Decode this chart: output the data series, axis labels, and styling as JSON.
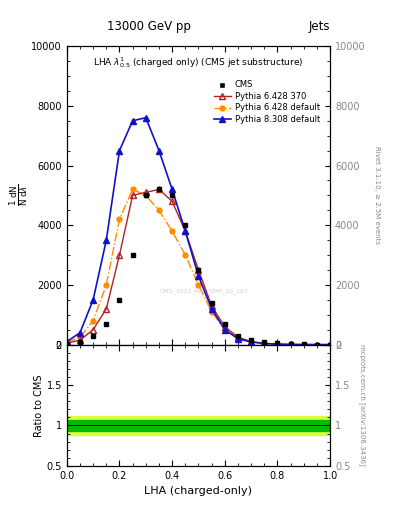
{
  "title_top": "13000 GeV pp",
  "title_right": "Jets",
  "plot_title": "LHA $\\lambda^{1}_{0.5}$ (charged only) (CMS jet substructure)",
  "xlabel": "LHA (charged-only)",
  "ylabel_main": "1/mathrm{N} mathrm{d}mathrm{N} / mathrm{d}lambda",
  "ylabel_ratio": "Ratio to CMS",
  "right_label_main": "Rivet 3.1.10, ≥ 2.5M events",
  "right_label_ratio": "mcplots.cern.ch [arXiv:1306.3436]",
  "watermark": "CMS_2021_PAS_SMP_20_187",
  "lha_x": [
    0.0,
    0.05,
    0.1,
    0.15,
    0.2,
    0.25,
    0.3,
    0.35,
    0.4,
    0.45,
    0.5,
    0.55,
    0.6,
    0.65,
    0.7,
    0.75,
    0.8,
    0.85,
    0.9,
    0.95,
    1.0
  ],
  "cms_y": [
    30,
    100,
    300,
    700,
    1500,
    3000,
    5000,
    5200,
    5000,
    4000,
    2500,
    1400,
    700,
    300,
    150,
    80,
    40,
    15,
    5,
    2,
    0
  ],
  "p6_370_y": [
    50,
    150,
    500,
    1200,
    3000,
    5000,
    5100,
    5200,
    4800,
    3800,
    2500,
    1300,
    600,
    250,
    100,
    40,
    15,
    5,
    2,
    1,
    0
  ],
  "p6_def_y": [
    80,
    250,
    800,
    2000,
    4200,
    5200,
    5000,
    4500,
    3800,
    3000,
    2000,
    1100,
    500,
    200,
    90,
    40,
    15,
    5,
    2,
    1,
    0
  ],
  "p8_def_y": [
    100,
    400,
    1500,
    3500,
    6500,
    7500,
    7600,
    6500,
    5200,
    3800,
    2300,
    1200,
    500,
    200,
    90,
    40,
    15,
    5,
    2,
    1,
    0
  ],
  "cms_color": "#000000",
  "p6_370_color": "#b22222",
  "p6_def_color": "#ff8c00",
  "p8_def_color": "#1111cc",
  "ylim_main": [
    0,
    10000
  ],
  "ylim_ratio": [
    0.5,
    2.0
  ],
  "yticks_main": [
    0,
    2000,
    4000,
    6000,
    8000,
    10000
  ],
  "ytick_labels_main": [
    "0",
    "2000",
    "4000",
    "6000",
    "8000",
    "10000"
  ],
  "yticks_ratio": [
    0.5,
    1.0,
    1.5,
    2.0
  ],
  "ytick_labels_ratio": [
    "0.5",
    "1",
    "1.5",
    "2"
  ],
  "ratio_band_inner_lo": 0.93,
  "ratio_band_inner_hi": 1.07,
  "ratio_band_outer_lo": 0.88,
  "ratio_band_outer_hi": 1.12,
  "ratio_band_color_inner": "#00bb00",
  "ratio_band_color_outer": "#ccff00"
}
